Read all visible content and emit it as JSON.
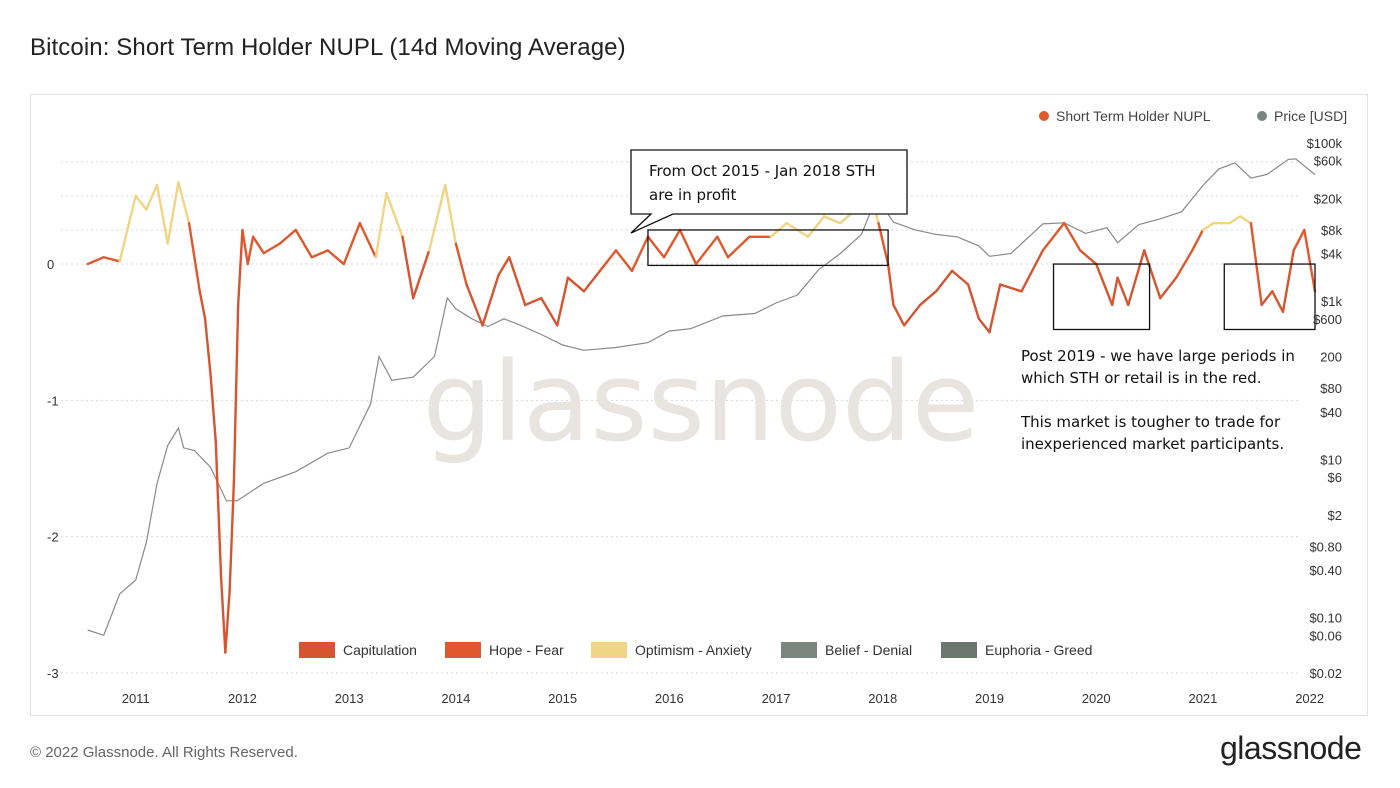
{
  "title": "Bitcoin: Short Term Holder NUPL (14d Moving Average)",
  "footer": {
    "copyright": "© 2022 Glassnode. All Rights Reserved.",
    "logo": "glassnode"
  },
  "watermark": "glassnode",
  "colors": {
    "capitulation": "#d65530",
    "hope_fear": "#e0582d",
    "optimism_anxiety": "#f0d584",
    "belief_denial": "#7a8580",
    "euphoria_greed": "#6c7770",
    "price": "#8a8a8a",
    "annotation_box": "#111111"
  },
  "chart_data": {
    "type": "line",
    "x_ticks": [
      "2011",
      "2012",
      "2013",
      "2014",
      "2015",
      "2016",
      "2017",
      "2018",
      "2019",
      "2020",
      "2021",
      "2022"
    ],
    "y_left_ticks": [
      "0",
      "-1",
      "-2",
      "-3"
    ],
    "y_left_range": [
      -3,
      0.8
    ],
    "y_right_scale": "log",
    "y_right_ticks": [
      "$100k",
      "$60k",
      "$20k",
      "$8k",
      "$4k",
      "$1k",
      "$600",
      "200",
      "$80",
      "$40",
      "$10",
      "$6",
      "$2",
      "$0.80",
      "$0.40",
      "$0.10",
      "$0.06",
      "$0.02"
    ],
    "y_right_range": [
      0.02,
      100000
    ],
    "legend_top": [
      {
        "name": "Short Term Holder NUPL",
        "color": "#e0582d"
      },
      {
        "name": "Price [USD]",
        "color": "#7a8580"
      }
    ],
    "legend_bottom": [
      {
        "name": "Capitulation",
        "color": "#d65530"
      },
      {
        "name": "Hope - Fear",
        "color": "#e0582d"
      },
      {
        "name": "Optimism - Anxiety",
        "color": "#f0d584"
      },
      {
        "name": "Belief - Denial",
        "color": "#7a8580"
      },
      {
        "name": "Euphoria - Greed",
        "color": "#6c7770"
      }
    ],
    "series": [
      {
        "name": "Short Term Holder NUPL",
        "x": [
          2010.55,
          2010.7,
          2010.85,
          2011.0,
          2011.1,
          2011.2,
          2011.3,
          2011.4,
          2011.5,
          2011.6,
          2011.65,
          2011.7,
          2011.75,
          2011.8,
          2011.84,
          2011.88,
          2011.92,
          2011.96,
          2012.0,
          2012.05,
          2012.1,
          2012.2,
          2012.35,
          2012.5,
          2012.65,
          2012.8,
          2012.95,
          2013.1,
          2013.25,
          2013.35,
          2013.5,
          2013.6,
          2013.75,
          2013.9,
          2014.0,
          2014.1,
          2014.25,
          2014.4,
          2014.5,
          2014.65,
          2014.8,
          2014.95,
          2015.05,
          2015.2,
          2015.35,
          2015.5,
          2015.65,
          2015.8,
          2015.95,
          2016.1,
          2016.25,
          2016.45,
          2016.55,
          2016.75,
          2016.95,
          2017.1,
          2017.3,
          2017.45,
          2017.6,
          2017.75,
          2017.9,
          2017.96,
          2018.05,
          2018.1,
          2018.2,
          2018.35,
          2018.5,
          2018.65,
          2018.8,
          2018.9,
          2019.0,
          2019.1,
          2019.3,
          2019.5,
          2019.7,
          2019.85,
          2020.0,
          2020.15,
          2020.2,
          2020.3,
          2020.45,
          2020.6,
          2020.75,
          2020.9,
          2021.0,
          2021.1,
          2021.25,
          2021.35,
          2021.45,
          2021.55,
          2021.65,
          2021.75,
          2021.85,
          2021.95,
          2022.05
        ],
        "values": [
          0.0,
          0.05,
          0.02,
          0.5,
          0.4,
          0.58,
          0.15,
          0.6,
          0.3,
          -0.2,
          -0.4,
          -0.8,
          -1.3,
          -2.3,
          -2.85,
          -2.4,
          -1.6,
          -0.3,
          0.25,
          0.0,
          0.2,
          0.08,
          0.15,
          0.25,
          0.05,
          0.1,
          0.0,
          0.3,
          0.05,
          0.52,
          0.2,
          -0.25,
          0.1,
          0.58,
          0.15,
          -0.15,
          -0.45,
          -0.08,
          0.05,
          -0.3,
          -0.25,
          -0.45,
          -0.1,
          -0.2,
          -0.05,
          0.1,
          -0.05,
          0.2,
          0.05,
          0.25,
          0.0,
          0.2,
          0.05,
          0.2,
          0.2,
          0.3,
          0.2,
          0.35,
          0.3,
          0.4,
          0.47,
          0.3,
          0.0,
          -0.3,
          -0.45,
          -0.3,
          -0.2,
          -0.05,
          -0.15,
          -0.4,
          -0.5,
          -0.15,
          -0.2,
          0.1,
          0.3,
          0.1,
          0.0,
          -0.3,
          -0.1,
          -0.3,
          0.1,
          -0.25,
          -0.1,
          0.1,
          0.25,
          0.3,
          0.3,
          0.35,
          0.3,
          -0.3,
          -0.2,
          -0.35,
          0.1,
          0.25,
          -0.2
        ]
      },
      {
        "name": "Price [USD]",
        "x": [
          2010.55,
          2010.7,
          2010.85,
          2011.0,
          2011.1,
          2011.2,
          2011.3,
          2011.4,
          2011.45,
          2011.55,
          2011.7,
          2011.85,
          2011.95,
          2012.2,
          2012.5,
          2012.8,
          2013.0,
          2013.2,
          2013.28,
          2013.4,
          2013.6,
          2013.8,
          2013.92,
          2014.0,
          2014.15,
          2014.3,
          2014.45,
          2014.6,
          2014.8,
          2015.0,
          2015.2,
          2015.5,
          2015.8,
          2016.0,
          2016.2,
          2016.5,
          2016.8,
          2017.0,
          2017.2,
          2017.4,
          2017.6,
          2017.8,
          2017.9,
          2017.96,
          2018.1,
          2018.3,
          2018.5,
          2018.7,
          2018.9,
          2019.0,
          2019.2,
          2019.5,
          2019.7,
          2019.9,
          2020.1,
          2020.2,
          2020.4,
          2020.6,
          2020.8,
          2021.0,
          2021.15,
          2021.3,
          2021.45,
          2021.6,
          2021.8,
          2021.87,
          2022.0,
          2022.05
        ],
        "values": [
          0.07,
          0.06,
          0.2,
          0.3,
          0.9,
          5,
          15,
          25,
          14,
          13,
          8,
          3,
          3,
          5,
          7,
          12,
          14,
          50,
          200,
          100,
          110,
          200,
          1100,
          800,
          600,
          480,
          600,
          500,
          380,
          280,
          240,
          260,
          300,
          420,
          450,
          650,
          700,
          950,
          1200,
          2500,
          4000,
          7000,
          15000,
          19000,
          10000,
          8000,
          7000,
          6500,
          5000,
          3700,
          4000,
          9500,
          9800,
          7200,
          8500,
          5500,
          9300,
          11000,
          13500,
          29000,
          47000,
          56000,
          36000,
          40000,
          62000,
          63000,
          45000,
          40000
        ]
      }
    ],
    "annotations": [
      {
        "text_lines": [
          "From Oct 2015 - Jan 2018 STH",
          "are in profit"
        ]
      },
      {
        "text_lines": [
          "Post 2019 - we have large periods in",
          "which STH or retail   is in the red.",
          "",
          "This market is tougher to trade for",
          "inexperienced market participants."
        ]
      }
    ],
    "highlight_boxes": [
      {
        "x": [
          2015.8,
          2018.05
        ],
        "y": [
          -0.01,
          0.25
        ]
      },
      {
        "x": [
          2019.6,
          2020.5
        ],
        "y": [
          -0.48,
          0.0
        ]
      },
      {
        "x": [
          2021.2,
          2022.05
        ],
        "y": [
          -0.48,
          0.0
        ]
      }
    ]
  }
}
